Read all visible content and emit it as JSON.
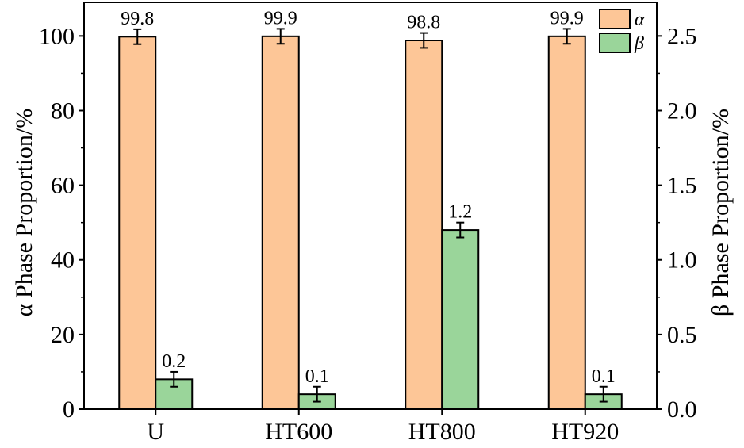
{
  "chart_data": {
    "type": "bar",
    "categories": [
      "U",
      "HT600",
      "HT800",
      "HT920"
    ],
    "series": [
      {
        "name": "α",
        "axis": "left",
        "values": [
          99.8,
          99.9,
          98.8,
          99.9
        ],
        "labels": [
          "99.8",
          "99.9",
          "98.8",
          "99.9"
        ],
        "error": [
          2,
          2,
          2,
          2
        ],
        "color": "#FDC697"
      },
      {
        "name": "β",
        "axis": "right",
        "values": [
          0.2,
          0.1,
          1.2,
          0.1
        ],
        "labels": [
          "0.2",
          "0.1",
          "1.2",
          "0.1"
        ],
        "error": [
          0.05,
          0.05,
          0.05,
          0.05
        ],
        "color": "#9AD59A"
      }
    ],
    "ylabel": "α Phase Proportion/%",
    "ylabel_right": "β Phase Proportion/%",
    "ylim": [
      0,
      109
    ],
    "ylim_right": [
      0,
      2.725
    ],
    "yticks": [
      "0",
      "20",
      "40",
      "60",
      "80",
      "100"
    ],
    "yticks_right": [
      "0.0",
      "0.5",
      "1.0",
      "1.5",
      "2.0",
      "2.5"
    ],
    "legend": {
      "position": "top-right",
      "entries": [
        "α",
        "β"
      ]
    },
    "grid": false
  }
}
